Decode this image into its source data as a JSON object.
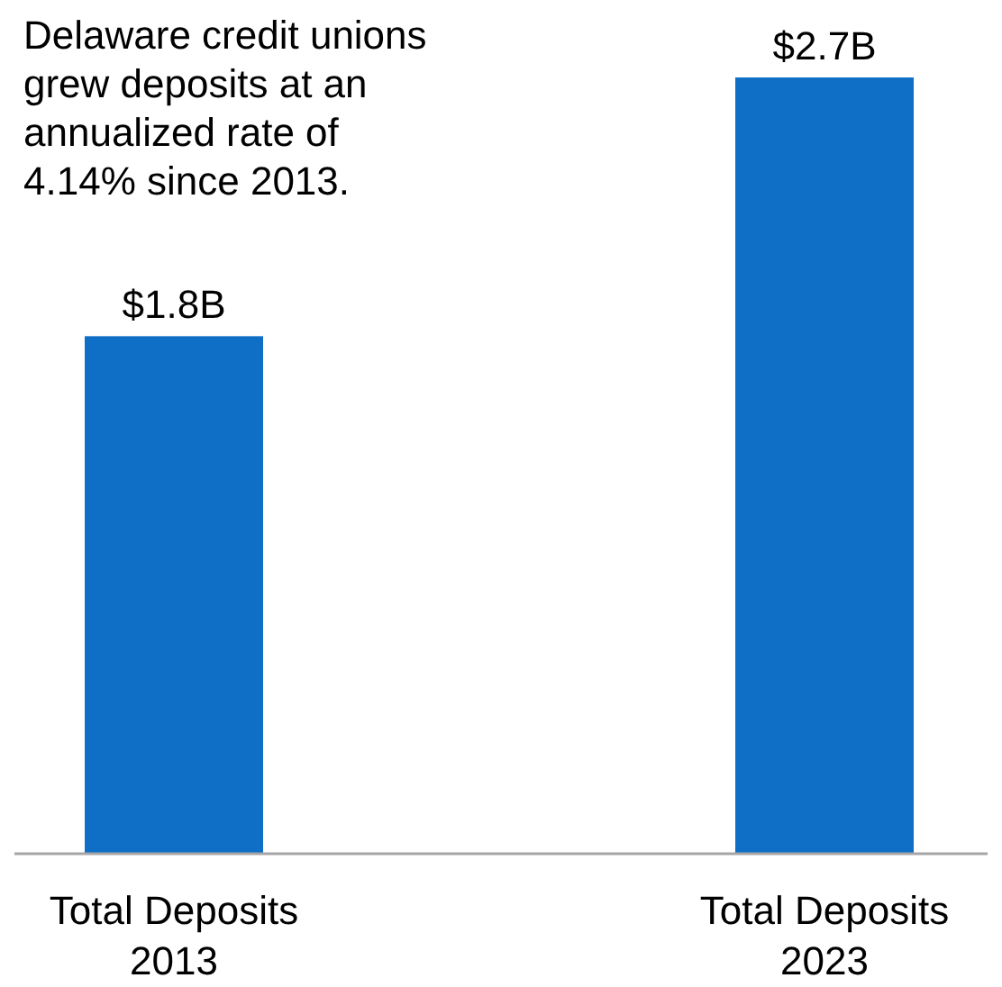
{
  "chart_data": {
    "type": "bar",
    "categories": [
      "Total Deposits 2013",
      "Total Deposits 2023"
    ],
    "values": [
      1.8,
      2.7
    ],
    "value_labels": [
      "$1.8B",
      "$2.7B"
    ],
    "color": "#0f6fc6",
    "annotations": [
      "Delaware credit unions grew deposits at an annualized rate of 4.14% since 2013."
    ]
  }
}
